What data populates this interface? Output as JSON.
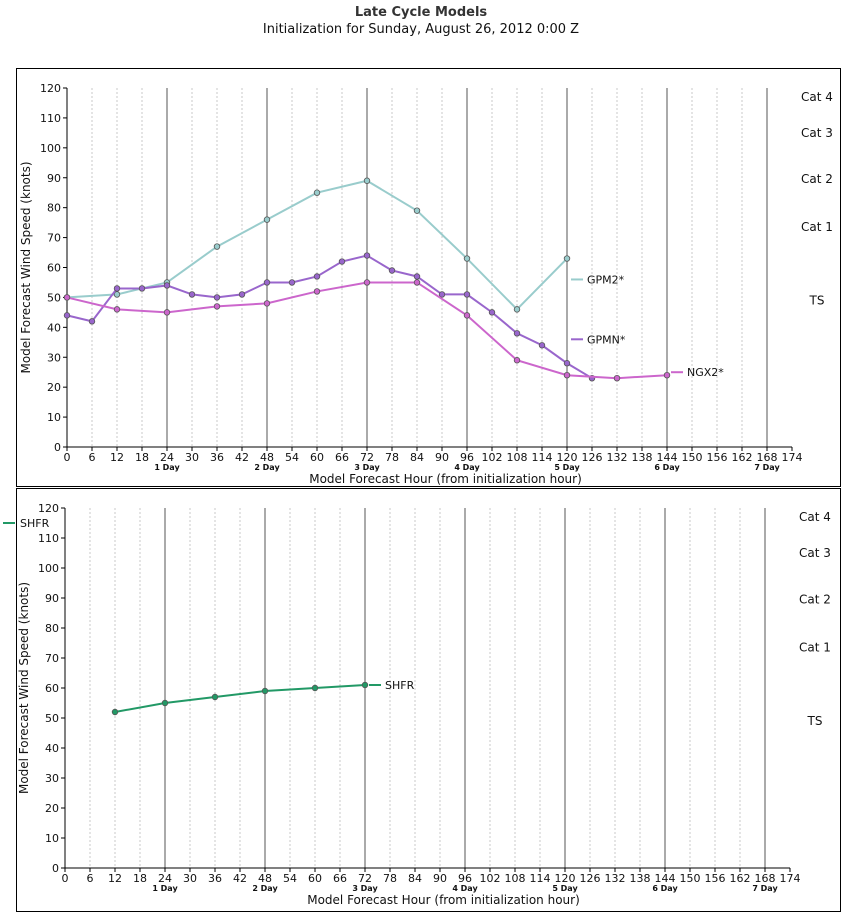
{
  "header": {
    "title": "Late Cycle Models",
    "subtitle": "Initialization for Sunday, August 26, 2012 0:00 Z"
  },
  "chart_data": [
    {
      "type": "line",
      "xlabel": "Model Forecast Hour (from initialization hour)",
      "ylabel": "Model Forecast Wind Speed (knots)",
      "xlim": [
        0,
        174
      ],
      "ylim": [
        0,
        120
      ],
      "x_ticks": [
        0,
        6,
        12,
        18,
        24,
        30,
        36,
        42,
        48,
        54,
        60,
        66,
        72,
        78,
        84,
        90,
        96,
        102,
        108,
        114,
        120,
        126,
        132,
        138,
        144,
        150,
        156,
        162,
        168,
        174
      ],
      "major_x_ticks": [
        0,
        12,
        24,
        36,
        48,
        60,
        72,
        84,
        96,
        108,
        120,
        132,
        144,
        156,
        168
      ],
      "y_ticks": [
        0,
        10,
        20,
        30,
        40,
        50,
        60,
        70,
        80,
        90,
        100,
        110,
        120
      ],
      "day_markers": [
        {
          "x": 24,
          "label": "1 Day"
        },
        {
          "x": 48,
          "label": "2 Day"
        },
        {
          "x": 72,
          "label": "3 Day"
        },
        {
          "x": 96,
          "label": "4 Day"
        },
        {
          "x": 120,
          "label": "5 Day"
        },
        {
          "x": 144,
          "label": "6 Day"
        },
        {
          "x": 168,
          "label": "7 Day"
        }
      ],
      "categories_right": [
        {
          "label": "Cat 4",
          "y": 117
        },
        {
          "label": "Cat 3",
          "y": 105
        },
        {
          "label": "Cat 2",
          "y": 89.5
        },
        {
          "label": "Cat 1",
          "y": 73.5
        },
        {
          "label": "TS",
          "y": 49
        }
      ],
      "grid": true,
      "series": [
        {
          "name": "GPM2*",
          "color": "#99cccc",
          "x": [
            0,
            12,
            24,
            36,
            48,
            60,
            72,
            84,
            96,
            108,
            120
          ],
          "y": [
            50,
            51,
            55,
            67,
            76,
            85,
            89,
            79,
            63,
            46,
            63
          ],
          "label_at": [
            120,
            56
          ]
        },
        {
          "name": "GPMN*",
          "color": "#9966cc",
          "x": [
            0,
            6,
            12,
            18,
            24,
            30,
            36,
            42,
            48,
            54,
            60,
            66,
            72,
            78,
            84,
            90,
            96,
            102,
            108,
            114,
            120,
            126
          ],
          "y": [
            44,
            42,
            53,
            53,
            54,
            51,
            50,
            51,
            55,
            55,
            57,
            62,
            64,
            59,
            57,
            51,
            51,
            45,
            38,
            34,
            28,
            23
          ],
          "label_at": [
            120,
            36
          ]
        },
        {
          "name": "NGX2*",
          "color": "#cc66cc",
          "x": [
            0,
            12,
            24,
            36,
            48,
            60,
            72,
            84,
            96,
            108,
            120,
            132,
            144
          ],
          "y": [
            50,
            46,
            45,
            47,
            48,
            52,
            55,
            55,
            44,
            29,
            24,
            23,
            24
          ],
          "label_at": [
            144,
            25
          ]
        }
      ]
    },
    {
      "type": "line",
      "xlabel": "Model Forecast Hour (from initialization hour)",
      "ylabel": "Model Forecast Wind Speed (knots)",
      "xlim": [
        0,
        174
      ],
      "ylim": [
        0,
        120
      ],
      "x_ticks": [
        0,
        6,
        12,
        18,
        24,
        30,
        36,
        42,
        48,
        54,
        60,
        66,
        72,
        78,
        84,
        90,
        96,
        102,
        108,
        114,
        120,
        126,
        132,
        138,
        144,
        150,
        156,
        162,
        168,
        174
      ],
      "major_x_ticks": [
        0,
        12,
        24,
        36,
        48,
        60,
        72,
        84,
        96,
        108,
        120,
        132,
        144,
        156,
        168
      ],
      "y_ticks": [
        0,
        10,
        20,
        30,
        40,
        50,
        60,
        70,
        80,
        90,
        100,
        110,
        120
      ],
      "day_markers": [
        {
          "x": 24,
          "label": "1 Day"
        },
        {
          "x": 48,
          "label": "2 Day"
        },
        {
          "x": 72,
          "label": "3 Day"
        },
        {
          "x": 96,
          "label": "4 Day"
        },
        {
          "x": 120,
          "label": "5 Day"
        },
        {
          "x": 144,
          "label": "6 Day"
        },
        {
          "x": 168,
          "label": "7 Day"
        }
      ],
      "categories_right": [
        {
          "label": "Cat 4",
          "y": 117
        },
        {
          "label": "Cat 3",
          "y": 105
        },
        {
          "label": "Cat 2",
          "y": 89.5
        },
        {
          "label": "Cat 1",
          "y": 73.5
        },
        {
          "label": "TS",
          "y": 49
        }
      ],
      "grid": true,
      "legend": [
        "SHFR"
      ],
      "series": [
        {
          "name": "SHFR",
          "color": "#229966",
          "x": [
            12,
            24,
            36,
            48,
            60,
            72
          ],
          "y": [
            52,
            55,
            57,
            59,
            60,
            61
          ],
          "label_at": [
            72,
            61
          ]
        }
      ]
    }
  ]
}
